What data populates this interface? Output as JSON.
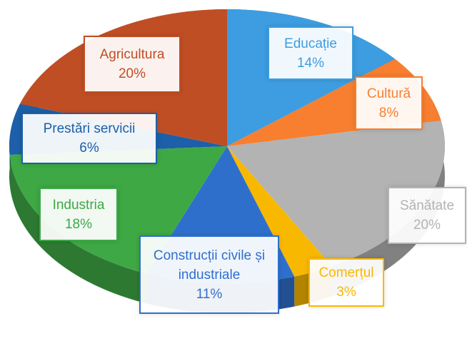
{
  "chart_data": {
    "type": "pie",
    "categories": [
      "Educație",
      "Cultură",
      "Sănătate",
      "Comerțul",
      "Construcții civile și industriale",
      "Industria",
      "Prestări servicii",
      "Agricultura"
    ],
    "values": [
      14,
      8,
      20,
      3,
      11,
      18,
      6,
      20
    ],
    "value_labels": [
      "14%",
      "8%",
      "20%",
      "3%",
      "11%",
      "18%",
      "6%",
      "20%"
    ],
    "colors": [
      "#3d9de0",
      "#f77f2f",
      "#b3b3b3",
      "#f9b800",
      "#2f6fcc",
      "#3ea845",
      "#1d5fa8",
      "#c04e25"
    ]
  }
}
